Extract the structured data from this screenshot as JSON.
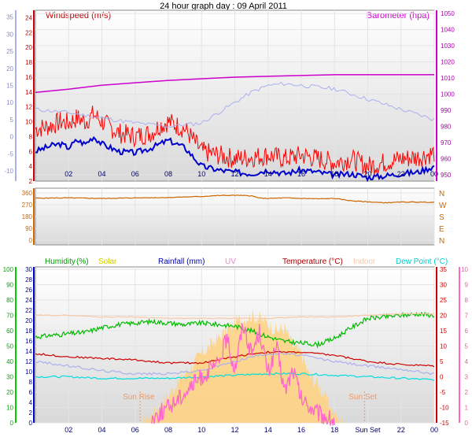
{
  "title": "24 hour graph day : 09 April 2011",
  "chart_data": [
    {
      "type": "line",
      "panel": "wind-baro",
      "left_label": "Windspeed (m/s)",
      "right_label": "Barometer (hpa)",
      "x_ticks": [
        "02",
        "04",
        "06",
        "08",
        "10",
        "12",
        "14",
        "16",
        "18",
        "20",
        "22",
        "00"
      ],
      "left_ticks": [
        "2",
        "4",
        "6",
        "8",
        "10",
        "12",
        "14",
        "16",
        "18",
        "20",
        "22",
        "24"
      ],
      "outer_left_ticks": [
        "-10",
        "-5",
        "0",
        "5",
        "10",
        "15",
        "20",
        "25",
        "30",
        "35"
      ],
      "right_ticks": [
        "950",
        "960",
        "970",
        "980",
        "990",
        "1000",
        "1010",
        "1020",
        "1030",
        "1040",
        "1050"
      ],
      "ylim_wind": [
        2,
        25
      ],
      "ylim_baro": [
        946,
        1052
      ],
      "ylim_outer": [
        -13,
        37
      ],
      "series": [
        {
          "key": "gust",
          "color": "#ff0000",
          "x": [
            0,
            1,
            1.5,
            2,
            2.5,
            3,
            3.5,
            4,
            5,
            6,
            7,
            7.5,
            8,
            9,
            10,
            11,
            12,
            13,
            14,
            15,
            16,
            17,
            18,
            19,
            20,
            21,
            22,
            23,
            24
          ],
          "y": [
            9,
            9.5,
            10,
            9.8,
            10.5,
            10,
            11,
            10,
            8.5,
            8,
            8.5,
            9.5,
            10,
            9,
            6,
            5.5,
            5,
            5.2,
            5.5,
            5,
            5.5,
            5,
            4.5,
            5,
            4,
            4.5,
            5,
            5.2,
            5.8
          ]
        },
        {
          "key": "average",
          "color": "#0000cc",
          "x": [
            0,
            1,
            1.5,
            2,
            2.5,
            3,
            3.5,
            4,
            5,
            6,
            7,
            7.5,
            8,
            9,
            10,
            11,
            12,
            13,
            14,
            15,
            16,
            17,
            18,
            19,
            20,
            21,
            22,
            23,
            24
          ],
          "y": [
            6,
            6.8,
            7,
            6.5,
            7.5,
            7,
            8,
            7,
            6,
            5.8,
            6.5,
            7,
            7.5,
            6.5,
            4,
            3.5,
            3.2,
            3,
            3.5,
            3,
            3.5,
            3.2,
            2.8,
            3,
            2.5,
            2.7,
            3,
            3.2,
            4
          ]
        },
        {
          "key": "barometer",
          "color": "#cc00cc",
          "x": [
            0,
            2,
            4,
            6,
            8,
            10,
            12,
            14,
            16,
            18,
            20,
            22,
            24
          ],
          "y": [
            1001,
            1003,
            1005.5,
            1007,
            1008.5,
            1009.5,
            1010.5,
            1011,
            1011.5,
            1012,
            1012,
            1012,
            1012
          ]
        },
        {
          "key": "outer",
          "color": "#aab0ee",
          "x": [
            0,
            2,
            4,
            6,
            8,
            10,
            12,
            13,
            14,
            15,
            16,
            17,
            18,
            20,
            22,
            24
          ],
          "y": [
            8,
            7,
            5.5,
            4,
            3,
            4,
            10,
            13,
            15,
            15.5,
            15,
            14.5,
            14,
            11,
            8,
            5
          ]
        }
      ]
    },
    {
      "type": "line",
      "panel": "wind-direction",
      "left_ticks": [
        "0",
        "90",
        "180",
        "270",
        "360"
      ],
      "right_labels": [
        "N",
        "W",
        "S",
        "E",
        "N"
      ],
      "ylim": [
        0,
        360
      ],
      "series": [
        {
          "key": "direction",
          "color": "#cc6600",
          "x": [
            0,
            2,
            4,
            6,
            8,
            10,
            11,
            12,
            13,
            13.5,
            14,
            15,
            16,
            17,
            18,
            19,
            20,
            21,
            22,
            23,
            24
          ],
          "y": [
            320,
            322,
            318,
            322,
            325,
            333,
            340,
            342,
            338,
            320,
            318,
            322,
            318,
            315,
            318,
            300,
            292,
            285,
            290,
            290,
            288
          ]
        }
      ]
    },
    {
      "type": "line",
      "panel": "multi",
      "header_labels": [
        {
          "text": "Humidity",
          "color": "#009900"
        },
        {
          "text": "(%)",
          "color": "#009900"
        },
        {
          "text": "Solar",
          "color": "#cccc00"
        },
        {
          "text": "Rainfall (mm)",
          "color": "#0000aa"
        },
        {
          "text": "UV",
          "color": "#ee88cc"
        },
        {
          "text": "Temperature (°C)",
          "color": "#aa0000"
        },
        {
          "text": "Indoor",
          "color": "#f8c8a8"
        },
        {
          "text": "Dew Point (°C)",
          "color": "#00cccc"
        }
      ],
      "sun_rise_label": "Sun Rise",
      "sun_set_label": "Sun Set",
      "sun_rise_hour": 6.3,
      "sun_set_hour": 19.8,
      "x_ticks": [
        "02",
        "04",
        "06",
        "08",
        "10",
        "12",
        "14",
        "16",
        "18",
        "Sun Set",
        "22",
        "00"
      ],
      "hum_ticks": [
        "0",
        "10",
        "20",
        "30",
        "40",
        "50",
        "60",
        "70",
        "80",
        "90",
        "100"
      ],
      "rain_ticks": [
        "0",
        "2",
        "4",
        "6",
        "8",
        "10",
        "12",
        "14",
        "16",
        "18",
        "20",
        "22",
        "24",
        "26",
        "28",
        "30"
      ],
      "temp_ticks": [
        "-15",
        "-10",
        "-5",
        "0",
        "5",
        "10",
        "15",
        "20",
        "25",
        "30",
        "35"
      ],
      "uv_ticks": [
        "0",
        "1",
        "2",
        "3",
        "4",
        "5",
        "6",
        "7",
        "8",
        "9",
        "10"
      ],
      "ylim_humidity": [
        0,
        100
      ],
      "ylim_temp": [
        -15,
        35
      ],
      "ylim_uv": [
        0,
        10
      ],
      "series": [
        {
          "key": "humidity",
          "color": "#00bb00",
          "axis": "humidity",
          "x": [
            0,
            1,
            2,
            3,
            4,
            5,
            6,
            7,
            8,
            9,
            10,
            11,
            12,
            13,
            14,
            15,
            16,
            17,
            18,
            19,
            20,
            21,
            22,
            23,
            24
          ],
          "y": [
            56,
            57,
            58,
            59,
            62,
            64,
            65,
            66,
            65,
            64,
            65,
            64,
            63,
            60,
            56,
            53,
            52,
            51,
            55,
            62,
            68,
            69,
            70,
            71,
            70
          ]
        },
        {
          "key": "temperature",
          "color": "#cc0000",
          "axis": "temp",
          "x": [
            0,
            2,
            4,
            6,
            8,
            10,
            12,
            13,
            14,
            15,
            16,
            17,
            18,
            19,
            20,
            22,
            24
          ],
          "y": [
            7.5,
            6.5,
            6,
            5.5,
            4.5,
            4.5,
            6.5,
            7.5,
            8,
            8,
            8,
            7.5,
            7,
            6,
            5,
            4,
            3.5
          ]
        },
        {
          "key": "indoor",
          "color": "#f8c8a8",
          "axis": "temp",
          "x": [
            0,
            2,
            4,
            6,
            8,
            10,
            12,
            14,
            16,
            18,
            20,
            22,
            24
          ],
          "y": [
            20,
            20,
            19.5,
            19.5,
            19,
            19,
            19,
            19,
            19.5,
            19.5,
            20,
            20.5,
            20.5
          ]
        },
        {
          "key": "outer",
          "color": "#aab0ee",
          "axis": "temp",
          "x": [
            0,
            2,
            4,
            6,
            8,
            10,
            12,
            13,
            14,
            15,
            16,
            17,
            18,
            20,
            22,
            24
          ],
          "y": [
            5,
            3.5,
            2,
            1,
            1,
            2,
            5,
            6.5,
            7.5,
            7.5,
            7,
            6,
            5,
            3.5,
            2.5,
            1
          ]
        },
        {
          "key": "dew_point",
          "color": "#00dddd",
          "axis": "temp",
          "x": [
            0,
            2,
            4,
            6,
            8,
            10,
            12,
            14,
            16,
            18,
            20,
            22,
            24
          ],
          "y": [
            0,
            0,
            -0.5,
            -0.5,
            -0.5,
            0,
            0.5,
            1,
            1,
            0.5,
            0,
            -0.5,
            -1
          ]
        },
        {
          "key": "uv",
          "color": "#ff66cc",
          "axis": "uv",
          "x": [
            7,
            8,
            9,
            10,
            11,
            11.5,
            12,
            12.5,
            13,
            13.5,
            14,
            14.5,
            15,
            15.5,
            16,
            17,
            18
          ],
          "y": [
            0.3,
            1,
            2,
            3,
            3.8,
            5.5,
            3.5,
            6.5,
            4.5,
            6,
            3.2,
            5,
            2,
            3.5,
            1.5,
            0.6,
            0.1
          ]
        }
      ],
      "solar": {
        "color": "#ffd27f",
        "axis": "uv",
        "x": [
          6.5,
          7,
          8,
          9,
          10,
          11,
          12,
          12.5,
          13,
          13.5,
          14,
          14.5,
          15,
          15.5,
          16,
          16.5,
          17,
          17.5,
          18,
          18.5
        ],
        "y": [
          0,
          0.5,
          1.8,
          3.2,
          4.5,
          5.5,
          6.5,
          6.8,
          7,
          6.8,
          6.5,
          6,
          6.2,
          5,
          4.5,
          3,
          2.5,
          1.5,
          0.6,
          0
        ]
      }
    }
  ]
}
